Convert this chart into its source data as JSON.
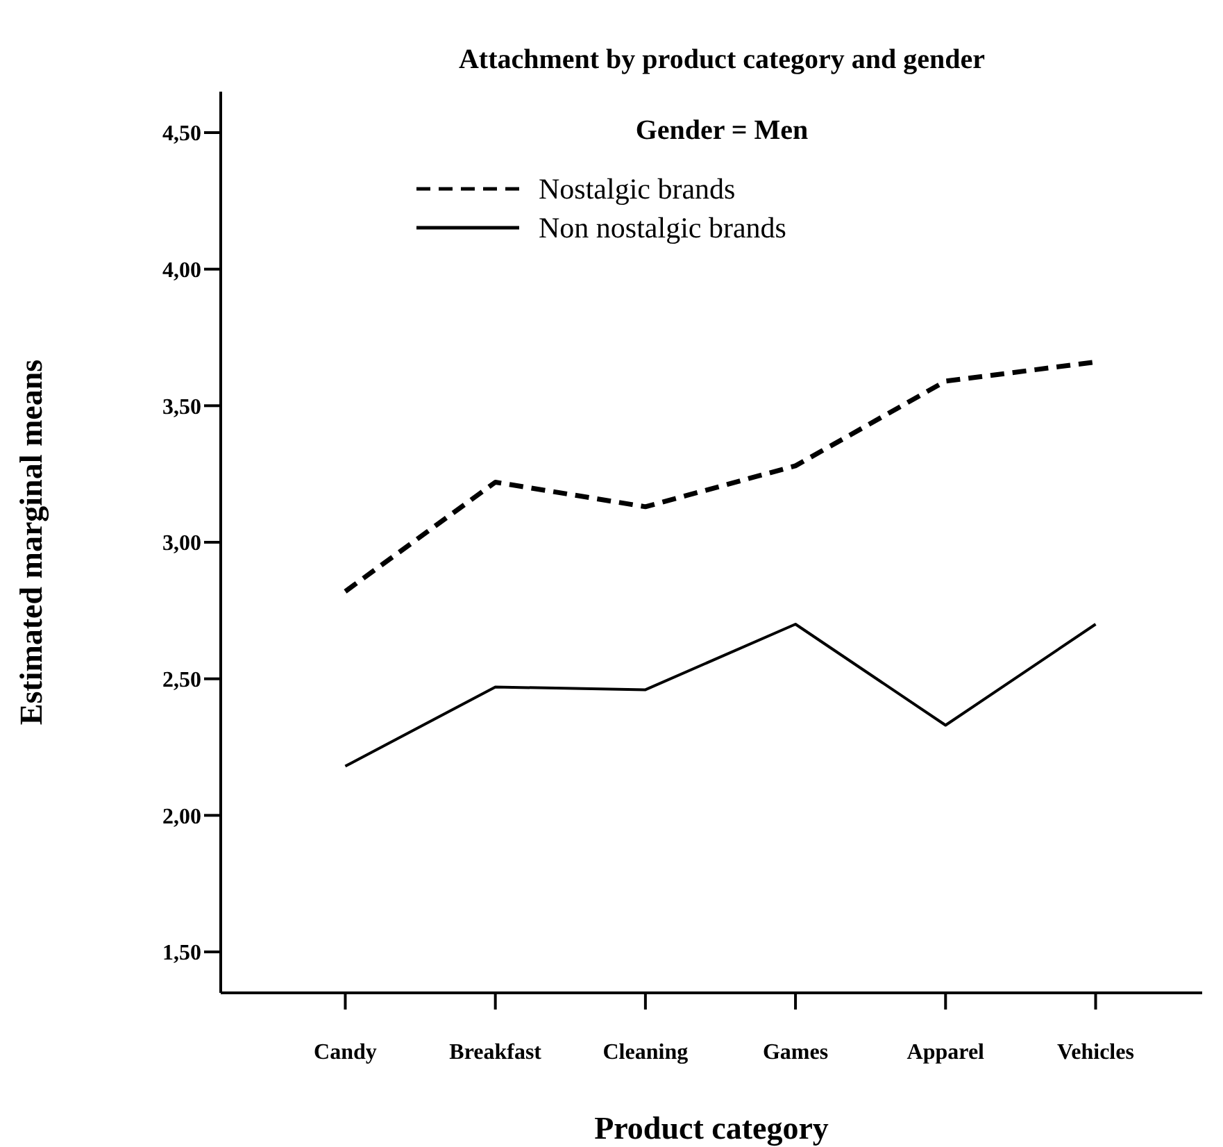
{
  "chart_data": {
    "type": "line",
    "title": "Attachment by product category and gender",
    "subtitle": "Gender = Men",
    "xlabel": "Product category",
    "ylabel": "Estimated marginal means",
    "categories": [
      "Candy",
      "Breakfast",
      "Cleaning",
      "Games",
      "Apparel",
      "Vehicles"
    ],
    "series": [
      {
        "name": "Nostalgic brands",
        "color": "#000000",
        "line_style": "dashed",
        "values": [
          2.82,
          3.22,
          3.13,
          3.28,
          3.59,
          3.66
        ]
      },
      {
        "name": "Non nostalgic brands",
        "color": "#000000",
        "line_style": "solid",
        "values": [
          2.18,
          2.47,
          2.46,
          2.7,
          2.33,
          2.7
        ]
      }
    ],
    "ylim": [
      1.35,
      4.65
    ],
    "yticks": [
      {
        "value": 1.5,
        "label": "1,50"
      },
      {
        "value": 2.0,
        "label": "2,00"
      },
      {
        "value": 2.5,
        "label": "2,50"
      },
      {
        "value": 3.0,
        "label": "3,00"
      },
      {
        "value": 3.5,
        "label": "3,50"
      },
      {
        "value": 4.0,
        "label": "4,00"
      },
      {
        "value": 4.5,
        "label": "4,50"
      }
    ],
    "grid": false,
    "legend": "top",
    "marker": "none"
  }
}
